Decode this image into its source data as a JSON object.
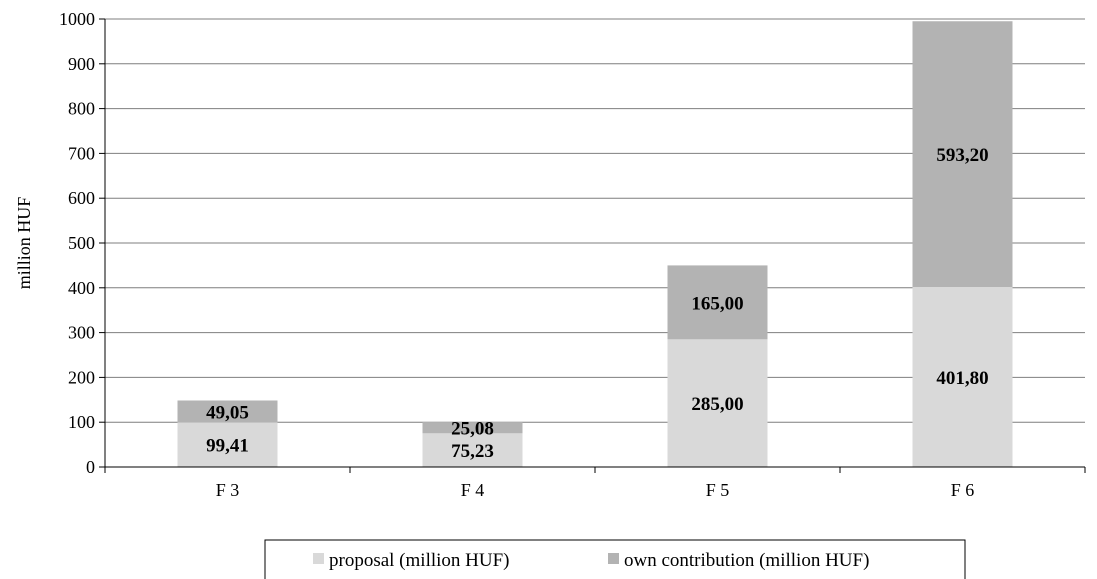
{
  "chart_data": {
    "type": "bar",
    "stacked": true,
    "ylabel": "million HUF",
    "xlabel": "",
    "title": "",
    "ylim": [
      0,
      1000
    ],
    "yticks": [
      0,
      100,
      200,
      300,
      400,
      500,
      600,
      700,
      800,
      900,
      1000
    ],
    "grid": true,
    "legend_position": "bottom",
    "categories": [
      "F 3",
      "F 4",
      "F 5",
      "F 6"
    ],
    "series": [
      {
        "name": "proposal (million HUF)",
        "color": "#d9d9d9",
        "values": [
          99.41,
          75.23,
          285.0,
          401.8
        ],
        "labels": [
          "99,41",
          "75,23",
          "285,00",
          "401,80"
        ]
      },
      {
        "name": "own contribution (million HUF)",
        "color": "#b3b3b3",
        "values": [
          49.05,
          25.08,
          165.0,
          593.2
        ],
        "labels": [
          "49,05",
          "25,08",
          "165,00",
          "593,20"
        ]
      }
    ]
  }
}
